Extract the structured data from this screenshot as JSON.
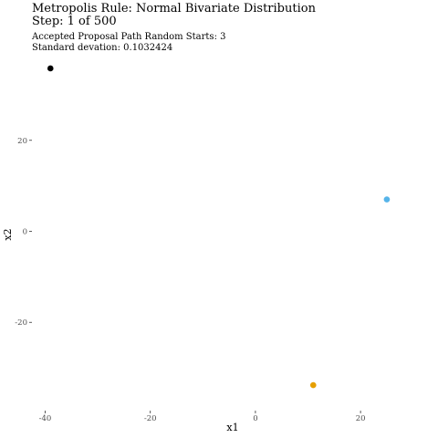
{
  "chart_data": {
    "type": "scatter",
    "title": "Metropolis Rule: Normal Bivariate Distribution",
    "subtitle": "Step: 1 of 500",
    "caption_lines": [
      "Accepted Proposal Path Random Starts: 3",
      "Standard devation: 0.1032424"
    ],
    "xlabel": "x1",
    "ylabel": "x2",
    "xlim": [
      -42,
      33
    ],
    "ylim": [
      -39,
      38
    ],
    "xticks": [
      -40,
      -20,
      0,
      20
    ],
    "xtick_labels": [
      "-40",
      "-20",
      "0",
      "20"
    ],
    "yticks": [
      -20,
      0,
      20
    ],
    "ytick_labels": [
      "-20",
      "0",
      "20"
    ],
    "grid": false,
    "points": [
      {
        "x": -39.0,
        "y": 35.8,
        "color": "#000000"
      },
      {
        "x": 25.0,
        "y": 7.0,
        "color": "#56B4E9"
      },
      {
        "x": 11.0,
        "y": -33.8,
        "color": "#E69F00"
      }
    ]
  }
}
